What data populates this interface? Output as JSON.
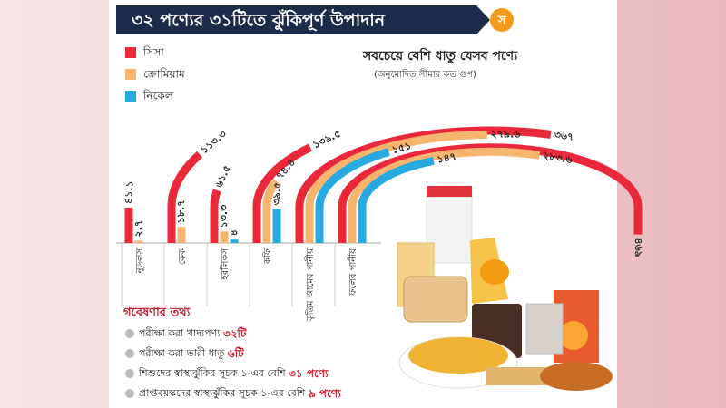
{
  "header": {
    "title": "৩২ পণ্যের ৩১টিতে ঝুঁকিপূর্ণ উপাদান",
    "logo": "স"
  },
  "chart_data": {
    "type": "curved-bar",
    "subtitle": "সবচেয়ে বেশি ধাতু যেসব পণ্যে",
    "note": "(অনুমোদিত সীমার কত গুণ)",
    "categories": [
      "নুডলস",
      "কেক",
      "হরলিকস",
      "কফি",
      "কৃত্রিম আমের পানীয়",
      "ফলের পানীয়"
    ],
    "series": [
      {
        "name": "সিসা",
        "color": "#e9283a",
        "values": [
          41.1,
          113.3,
          61.5,
          139.5,
          367,
          469
        ],
        "value_labels": [
          "৪১.১",
          "১১৩.৩",
          "৬১.৫",
          "১৩৯.৫",
          "৩৬৭",
          "৪৬৯"
        ]
      },
      {
        "name": "ক্রোমিয়াম",
        "color": "#f6b56f",
        "values": [
          2.7,
          18.7,
          13.3,
          74.4,
          279.6,
          283.6
        ],
        "value_labels": [
          "২.৭",
          "১৮.৭",
          "১৩.৩",
          "৭৪.৪",
          "২৭৯.৬",
          "২৮৩.৬"
        ]
      },
      {
        "name": "নিকেল",
        "color": "#27a9e1",
        "values": [
          null,
          null,
          4,
          39.5,
          151,
          147
        ],
        "value_labels": [
          null,
          null,
          "৪",
          "৩৯.৫",
          "১৫১",
          "১৪৭"
        ]
      }
    ]
  },
  "facts": {
    "title": "গবেষণার তথ্য",
    "items": [
      {
        "text": "পরীক্ষা করা খাদ্যপণ্য ",
        "highlight": "৩২টি"
      },
      {
        "text": "পরীক্ষা করা ভারী ধাতু ",
        "highlight": "৬টি"
      },
      {
        "text": "শিশুদের স্বাস্থ্যঝুঁকির সূচক ১-এর বেশি ",
        "highlight": "৩১ পণ্যে"
      },
      {
        "text": "প্রাপ্তবয়স্কদের স্বাস্থ্যঝুঁকির সূচক ১-এর বেশি ",
        "highlight": "৯ পণ্যে"
      }
    ]
  }
}
